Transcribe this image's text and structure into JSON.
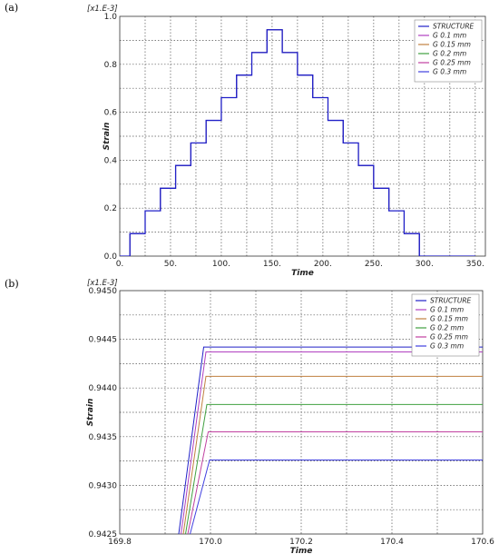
{
  "chart_data": [
    {
      "panel_label": "(a)",
      "type": "line",
      "scale_note": "[x1.E-3]",
      "xlabel": "Time",
      "ylabel": "Strain",
      "xlim": [
        0,
        360
      ],
      "ylim": [
        0,
        1.0
      ],
      "x_ticks": [
        0,
        50,
        100,
        150,
        200,
        250,
        300,
        350
      ],
      "x_tick_labels": [
        "0.",
        "50.",
        "100.",
        "150.",
        "200.",
        "250.",
        "300.",
        "350."
      ],
      "y_ticks": [
        0,
        0.2,
        0.4,
        0.6,
        0.8,
        1.0
      ],
      "y_tick_labels": [
        "0.0",
        "0.2",
        "0.4",
        "0.6",
        "0.8",
        "1.0"
      ],
      "grid": true,
      "legend_position": "top-right",
      "series": [
        {
          "name": "STRUCTURE",
          "color": "#2020c8"
        },
        {
          "name": "G 0.1 mm",
          "color": "#b040c0"
        },
        {
          "name": "G 0.15 mm",
          "color": "#c08040"
        },
        {
          "name": "G 0.2 mm",
          "color": "#40a040"
        },
        {
          "name": "G 0.25 mm",
          "color": "#c040a0"
        },
        {
          "name": "G 0.3 mm",
          "color": "#4040e0"
        }
      ],
      "x": [
        0,
        5,
        10,
        10,
        25,
        25,
        40,
        40,
        55,
        55,
        70,
        70,
        85,
        85,
        100,
        100,
        115,
        115,
        130,
        130,
        145,
        145,
        160,
        160,
        175,
        175,
        190,
        190,
        205,
        205,
        220,
        220,
        235,
        235,
        250,
        250,
        265,
        265,
        280,
        280,
        295,
        295,
        310,
        310,
        325,
        325,
        340,
        340,
        350
      ],
      "y": [
        0,
        0,
        0,
        0.094,
        0.094,
        0.189,
        0.189,
        0.283,
        0.283,
        0.378,
        0.378,
        0.472,
        0.472,
        0.566,
        0.566,
        0.661,
        0.661,
        0.755,
        0.755,
        0.849,
        0.849,
        0.944,
        0.944,
        0.849,
        0.849,
        0.755,
        0.755,
        0.661,
        0.661,
        0.566,
        0.566,
        0.472,
        0.472,
        0.378,
        0.378,
        0.283,
        0.283,
        0.189,
        0.189,
        0.094,
        0.094,
        0,
        0,
        0,
        0,
        0,
        0,
        0,
        0
      ]
    },
    {
      "panel_label": "(b)",
      "type": "line",
      "scale_note": "[x1.E-3]",
      "xlabel": "Time",
      "ylabel": "Strain",
      "xlim": [
        169.8,
        170.6
      ],
      "ylim": [
        0.9425,
        0.945
      ],
      "x_ticks": [
        169.8,
        170.0,
        170.2,
        170.4,
        170.6
      ],
      "x_tick_labels": [
        "169.8",
        "170.0",
        "170.2",
        "170.4",
        "170.6"
      ],
      "y_ticks": [
        0.9425,
        0.943,
        0.9435,
        0.944,
        0.9445,
        0.945
      ],
      "y_tick_labels": [
        "0.9425",
        "0.9430",
        "0.9435",
        "0.9440",
        "0.9445",
        "0.9450"
      ],
      "grid": true,
      "legend_position": "top-right",
      "series": [
        {
          "name": "STRUCTURE",
          "color": "#2020c8",
          "x": [
            169.93,
            169.985,
            170.6
          ],
          "values": [
            0.9425,
            0.94442,
            0.94442
          ]
        },
        {
          "name": "G 0.1 mm",
          "color": "#b040c0",
          "x": [
            169.935,
            169.99,
            170.6
          ],
          "values": [
            0.9425,
            0.94437,
            0.94437
          ]
        },
        {
          "name": "G 0.15 mm",
          "color": "#c08040",
          "x": [
            169.94,
            169.99,
            170.6
          ],
          "values": [
            0.9425,
            0.94412,
            0.94412
          ]
        },
        {
          "name": "G 0.2 mm",
          "color": "#40a040",
          "x": [
            169.945,
            169.992,
            170.6
          ],
          "values": [
            0.9425,
            0.94383,
            0.94383
          ]
        },
        {
          "name": "G 0.25 mm",
          "color": "#c040a0",
          "x": [
            169.95,
            169.995,
            170.6
          ],
          "values": [
            0.9425,
            0.94355,
            0.94355
          ]
        },
        {
          "name": "G 0.3 mm",
          "color": "#4040e0",
          "x": [
            169.955,
            169.998,
            170.6
          ],
          "values": [
            0.9425,
            0.94326,
            0.94326
          ]
        }
      ]
    }
  ]
}
